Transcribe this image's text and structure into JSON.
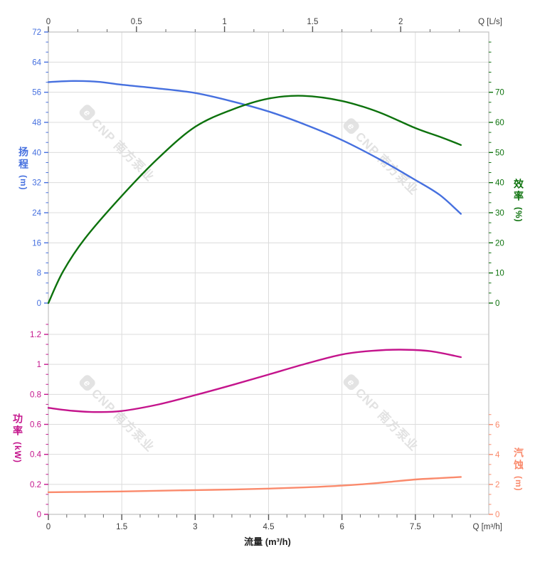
{
  "watermark": {
    "logo": "e",
    "text": "CNP 南方泵业",
    "color": "#e2e2e2"
  },
  "chart_data": [
    {
      "type": "line",
      "title": "",
      "x_axis": {
        "position": "top",
        "label": "Q [L/s]",
        "major_ticks": [
          0,
          0.5,
          1,
          1.5,
          2
        ],
        "minor_step": 0.1666667,
        "range": [
          0,
          2.5
        ],
        "units_per_m3h": 0.2777778
      },
      "y_left": {
        "title": "扬程",
        "unit": "(m)",
        "color": "#4670df",
        "major_ticks": [
          0,
          8,
          16,
          24,
          32,
          40,
          48,
          56,
          64,
          72
        ],
        "minor_step": 2.6666667,
        "range": [
          0,
          72
        ]
      },
      "y_right": {
        "title": "效率",
        "unit": "(%)",
        "color": "#0d720d",
        "major_ticks": [
          0,
          10,
          20,
          30,
          40,
          50,
          60,
          70
        ],
        "minor_step": 3.3333333,
        "range": [
          0,
          90
        ]
      },
      "series": [
        {
          "name": "扬程",
          "axis": "left",
          "color": "#4670df",
          "x_unit": "m³/h",
          "points": [
            [
              0,
              58.7
            ],
            [
              0.5,
              59.0
            ],
            [
              1,
              58.8
            ],
            [
              1.5,
              58.0
            ],
            [
              2.25,
              57.0
            ],
            [
              3,
              55.8
            ],
            [
              3.75,
              53.6
            ],
            [
              4.5,
              50.9
            ],
            [
              5.25,
              47.4
            ],
            [
              6,
              43.3
            ],
            [
              6.75,
              38.3
            ],
            [
              7.5,
              32.7
            ],
            [
              8,
              28.7
            ],
            [
              8.43,
              23.7
            ]
          ]
        },
        {
          "name": "效率",
          "axis": "right",
          "color": "#0d720d",
          "x_unit": "m³/h",
          "points": [
            [
              0,
              0
            ],
            [
              0.3,
              10.5
            ],
            [
              0.75,
              21.5
            ],
            [
              1.5,
              35.6
            ],
            [
              2.25,
              48.2
            ],
            [
              3,
              58.5
            ],
            [
              3.75,
              64.2
            ],
            [
              4.5,
              67.9
            ],
            [
              5.2,
              68.8
            ],
            [
              6,
              67.1
            ],
            [
              6.75,
              63.4
            ],
            [
              7.5,
              58.1
            ],
            [
              8,
              55.2
            ],
            [
              8.43,
              52.5
            ]
          ]
        }
      ]
    },
    {
      "type": "line",
      "title": "",
      "x_axis": {
        "position": "bottom",
        "label": "Q [m³/h]",
        "title": "流量 (m³/h)",
        "major_ticks": [
          0,
          1.5,
          3,
          4.5,
          6,
          7.5
        ],
        "minor_step": 0.375,
        "range": [
          0,
          9
        ]
      },
      "y_left": {
        "title": "功率",
        "unit": "(kW)",
        "color": "#c4148c",
        "major_ticks": [
          0,
          0.2,
          0.4,
          0.6,
          0.8,
          1,
          1.2
        ],
        "minor_step": 0.0666667,
        "range": [
          0,
          1.25
        ]
      },
      "y_right": {
        "title": "汽蚀",
        "unit": "(m)",
        "color": "#fa8a6c",
        "major_ticks": [
          0,
          2,
          4,
          6
        ],
        "minor_step": 0.6666667,
        "range": [
          0,
          12.5
        ]
      },
      "series": [
        {
          "name": "功率",
          "axis": "left",
          "color": "#c4148c",
          "x_unit": "m³/h",
          "points": [
            [
              0,
              0.71
            ],
            [
              0.5,
              0.69
            ],
            [
              1,
              0.682
            ],
            [
              1.5,
              0.689
            ],
            [
              2.25,
              0.733
            ],
            [
              3,
              0.795
            ],
            [
              3.75,
              0.862
            ],
            [
              4.5,
              0.932
            ],
            [
              5.25,
              1.003
            ],
            [
              6,
              1.066
            ],
            [
              6.6,
              1.09
            ],
            [
              7.2,
              1.098
            ],
            [
              7.8,
              1.088
            ],
            [
              8.43,
              1.048
            ]
          ]
        },
        {
          "name": "汽蚀",
          "axis": "right",
          "color": "#fa8a6c",
          "x_unit": "m³/h",
          "points": [
            [
              0,
              1.48
            ],
            [
              0.75,
              1.5
            ],
            [
              1.5,
              1.53
            ],
            [
              2.25,
              1.58
            ],
            [
              3,
              1.62
            ],
            [
              3.75,
              1.66
            ],
            [
              4.5,
              1.72
            ],
            [
              5.25,
              1.8
            ],
            [
              6,
              1.92
            ],
            [
              6.75,
              2.1
            ],
            [
              7.5,
              2.33
            ],
            [
              8,
              2.42
            ],
            [
              8.43,
              2.5
            ]
          ]
        }
      ]
    }
  ]
}
